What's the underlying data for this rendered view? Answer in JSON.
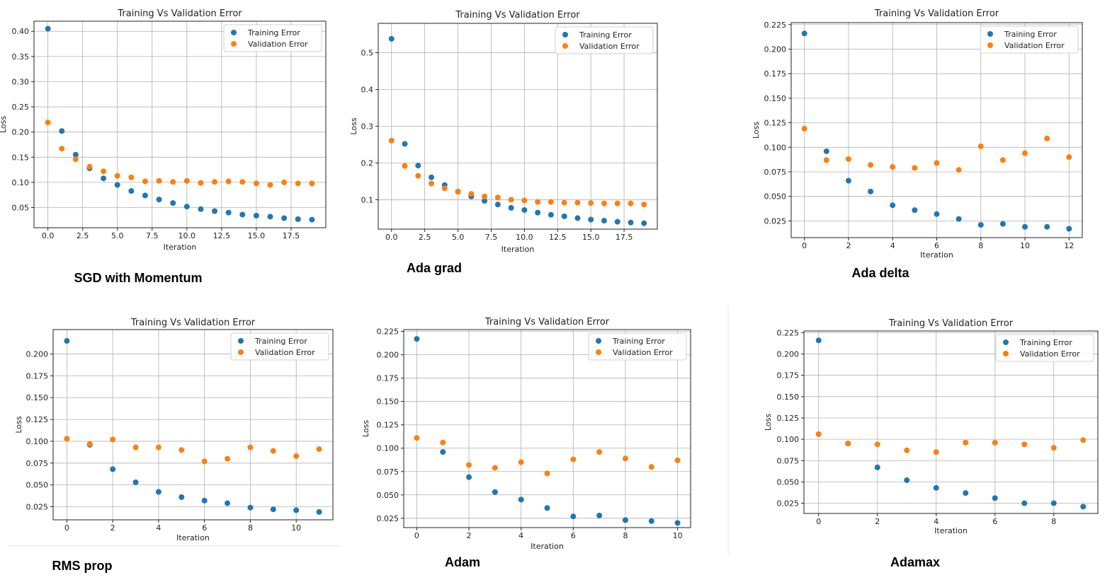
{
  "colors": {
    "training": "#1f77b4",
    "validation": "#ff7f0e"
  },
  "chart_data": [
    {
      "type": "scatter",
      "caption": "SGD with Momentum",
      "title": "Training Vs Validation Error",
      "xlabel": "Iteration",
      "ylabel": "Loss",
      "xlim": [
        -1,
        20
      ],
      "ylim": [
        0.01,
        0.42
      ],
      "xticks": [
        "0.0",
        "2.5",
        "5.0",
        "7.5",
        "10.0",
        "12.5",
        "15.0",
        "17.5"
      ],
      "xtick_values": [
        0,
        2.5,
        5,
        7.5,
        10,
        12.5,
        15,
        17.5
      ],
      "yticks": [
        "0.05",
        "0.10",
        "0.15",
        "0.20",
        "0.25",
        "0.30",
        "0.35",
        "0.40"
      ],
      "ytick_values": [
        0.05,
        0.1,
        0.15,
        0.2,
        0.25,
        0.3,
        0.35,
        0.4
      ],
      "grid": true,
      "legend": "top-right",
      "x": [
        0,
        1,
        2,
        3,
        4,
        5,
        6,
        7,
        8,
        9,
        10,
        11,
        12,
        13,
        14,
        15,
        16,
        17,
        18,
        19
      ],
      "series": [
        {
          "name": "Training Error",
          "values": [
            0.405,
            0.202,
            0.155,
            0.128,
            0.108,
            0.095,
            0.083,
            0.074,
            0.066,
            0.059,
            0.052,
            0.047,
            0.043,
            0.04,
            0.036,
            0.034,
            0.032,
            0.029,
            0.027,
            0.026
          ]
        },
        {
          "name": "Validation Error",
          "values": [
            0.219,
            0.167,
            0.146,
            0.131,
            0.122,
            0.113,
            0.11,
            0.102,
            0.103,
            0.101,
            0.103,
            0.099,
            0.101,
            0.102,
            0.101,
            0.098,
            0.095,
            0.1,
            0.098,
            0.098
          ]
        }
      ]
    },
    {
      "type": "scatter",
      "caption": "Ada grad",
      "title": "Training Vs Validation Error",
      "xlabel": "Iteration",
      "ylabel": "Loss",
      "xlim": [
        -1,
        20
      ],
      "ylim": [
        0.02,
        0.58
      ],
      "xticks": [
        "0.0",
        "2.5",
        "5.0",
        "7.5",
        "10.0",
        "12.5",
        "15.0",
        "17.5"
      ],
      "xtick_values": [
        0,
        2.5,
        5,
        7.5,
        10,
        12.5,
        15,
        17.5
      ],
      "yticks": [
        "0.1",
        "0.2",
        "0.3",
        "0.4",
        "0.5"
      ],
      "ytick_values": [
        0.1,
        0.2,
        0.3,
        0.4,
        0.5
      ],
      "grid": true,
      "legend": "top-right",
      "x": [
        0,
        1,
        2,
        3,
        4,
        5,
        6,
        7,
        8,
        9,
        10,
        11,
        12,
        13,
        14,
        15,
        16,
        17,
        18,
        19
      ],
      "series": [
        {
          "name": "Training Error",
          "values": [
            0.538,
            0.252,
            0.193,
            0.161,
            0.14,
            0.122,
            0.109,
            0.097,
            0.087,
            0.078,
            0.072,
            0.065,
            0.059,
            0.055,
            0.05,
            0.046,
            0.043,
            0.04,
            0.038,
            0.036
          ]
        },
        {
          "name": "Validation Error",
          "values": [
            0.261,
            0.192,
            0.165,
            0.144,
            0.131,
            0.122,
            0.116,
            0.109,
            0.106,
            0.1,
            0.098,
            0.094,
            0.094,
            0.092,
            0.092,
            0.091,
            0.09,
            0.09,
            0.09,
            0.087
          ]
        }
      ]
    },
    {
      "type": "scatter",
      "caption": "Ada delta",
      "title": "Training Vs Validation Error",
      "xlabel": "Iteration",
      "ylabel": "Loss",
      "xlim": [
        -0.6,
        12.6
      ],
      "ylim": [
        0.008,
        0.227
      ],
      "xticks": [
        "0",
        "2",
        "4",
        "6",
        "8",
        "10",
        "12"
      ],
      "xtick_values": [
        0,
        2,
        4,
        6,
        8,
        10,
        12
      ],
      "yticks": [
        "0.025",
        "0.050",
        "0.075",
        "0.100",
        "0.125",
        "0.150",
        "0.175",
        "0.200",
        "0.225"
      ],
      "ytick_values": [
        0.025,
        0.05,
        0.075,
        0.1,
        0.125,
        0.15,
        0.175,
        0.2,
        0.225
      ],
      "grid": true,
      "legend": "top-right",
      "x": [
        0,
        1,
        2,
        3,
        4,
        5,
        6,
        7,
        8,
        9,
        10,
        11,
        12
      ],
      "series": [
        {
          "name": "Training Error",
          "values": [
            0.216,
            0.096,
            0.066,
            0.055,
            0.041,
            0.036,
            0.032,
            0.027,
            0.021,
            0.022,
            0.019,
            0.019,
            0.017
          ]
        },
        {
          "name": "Validation Error",
          "values": [
            0.119,
            0.087,
            0.088,
            0.082,
            0.08,
            0.079,
            0.084,
            0.077,
            0.101,
            0.087,
            0.094,
            0.109,
            0.09
          ]
        }
      ]
    },
    {
      "type": "scatter",
      "caption": "RMS prop",
      "title": "Training Vs Validation Error",
      "xlabel": "Iteration",
      "ylabel": "Loss",
      "xlim": [
        -0.6,
        11.6
      ],
      "ylim": [
        0.01,
        0.228
      ],
      "xticks": [
        "0",
        "2",
        "4",
        "6",
        "8",
        "10"
      ],
      "xtick_values": [
        0,
        2,
        4,
        6,
        8,
        10
      ],
      "yticks": [
        "0.025",
        "0.050",
        "0.075",
        "0.100",
        "0.125",
        "0.150",
        "0.175",
        "0.200"
      ],
      "ytick_values": [
        0.025,
        0.05,
        0.075,
        0.1,
        0.125,
        0.15,
        0.175,
        0.2
      ],
      "grid": true,
      "legend": "top-right",
      "x": [
        0,
        1,
        2,
        3,
        4,
        5,
        6,
        7,
        8,
        9,
        10,
        11
      ],
      "series": [
        {
          "name": "Training Error",
          "values": [
            0.215,
            0.096,
            0.068,
            0.053,
            0.042,
            0.036,
            0.032,
            0.029,
            0.024,
            0.022,
            0.021,
            0.019
          ]
        },
        {
          "name": "Validation Error",
          "values": [
            0.103,
            0.097,
            0.102,
            0.093,
            0.093,
            0.09,
            0.077,
            0.08,
            0.093,
            0.089,
            0.083,
            0.091
          ]
        }
      ]
    },
    {
      "type": "scatter",
      "caption": "Adam",
      "title": "Training Vs Validation Error",
      "xlabel": "Iteration",
      "ylabel": "Loss",
      "xlim": [
        -0.5,
        10.5
      ],
      "ylim": [
        0.015,
        0.227
      ],
      "xticks": [
        "0",
        "2",
        "4",
        "6",
        "8",
        "10"
      ],
      "xtick_values": [
        0,
        2,
        4,
        6,
        8,
        10
      ],
      "yticks": [
        "0.025",
        "0.050",
        "0.075",
        "0.100",
        "0.125",
        "0.150",
        "0.175",
        "0.200",
        "0.225"
      ],
      "ytick_values": [
        0.025,
        0.05,
        0.075,
        0.1,
        0.125,
        0.15,
        0.175,
        0.2,
        0.225
      ],
      "grid": true,
      "legend": "top-right",
      "x": [
        0,
        1,
        2,
        3,
        4,
        5,
        6,
        7,
        8,
        9,
        10
      ],
      "series": [
        {
          "name": "Training Error",
          "values": [
            0.217,
            0.096,
            0.069,
            0.053,
            0.045,
            0.036,
            0.027,
            0.028,
            0.023,
            0.022,
            0.02
          ]
        },
        {
          "name": "Validation Error",
          "values": [
            0.111,
            0.106,
            0.082,
            0.079,
            0.085,
            0.073,
            0.088,
            0.096,
            0.089,
            0.08,
            0.087
          ]
        }
      ]
    },
    {
      "type": "scatter",
      "caption": "Adamax",
      "title": "Training Vs Validation Error",
      "xlabel": "Iteration",
      "ylabel": "Loss",
      "xlim": [
        -0.5,
        9.5
      ],
      "ylim": [
        0.013,
        0.227
      ],
      "xticks": [
        "0",
        "2",
        "4",
        "6",
        "8"
      ],
      "xtick_values": [
        0,
        2,
        4,
        6,
        8
      ],
      "yticks": [
        "0.025",
        "0.050",
        "0.075",
        "0.100",
        "0.125",
        "0.150",
        "0.175",
        "0.200",
        "0.225"
      ],
      "ytick_values": [
        0.025,
        0.05,
        0.075,
        0.1,
        0.125,
        0.15,
        0.175,
        0.2,
        0.225
      ],
      "grid": true,
      "legend": "top-right",
      "x": [
        0,
        1,
        2,
        3,
        4,
        5,
        6,
        7,
        8,
        9
      ],
      "series": [
        {
          "name": "Training Error",
          "values": [
            0.216,
            0.095,
            0.067,
            0.052,
            0.043,
            0.037,
            0.031,
            0.025,
            0.025,
            0.021
          ]
        },
        {
          "name": "Validation Error",
          "values": [
            0.106,
            0.095,
            0.094,
            0.087,
            0.085,
            0.096,
            0.096,
            0.094,
            0.09,
            0.099
          ]
        }
      ]
    }
  ]
}
